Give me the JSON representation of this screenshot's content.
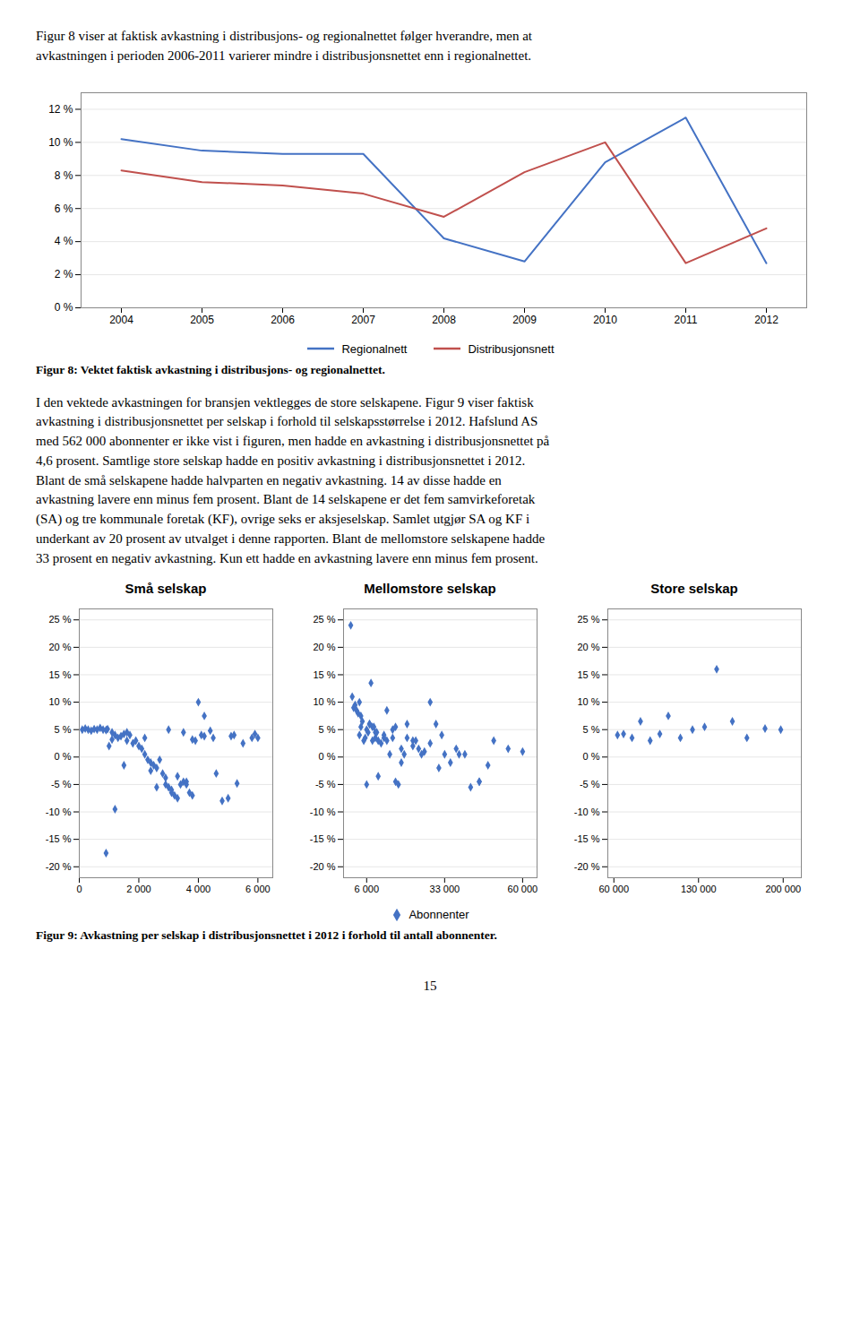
{
  "chart_data": [
    {
      "type": "line",
      "x": [
        2004,
        2005,
        2006,
        2007,
        2008,
        2009,
        2010,
        2011,
        2012
      ],
      "series": [
        {
          "name": "Regionalnett",
          "color": "#4472C4",
          "values": [
            10.2,
            9.5,
            9.3,
            9.3,
            4.2,
            2.8,
            8.8,
            11.5,
            2.7
          ]
        },
        {
          "name": "Distribusjonsnett",
          "color": "#C0504D",
          "values": [
            8.3,
            7.6,
            7.4,
            6.9,
            5.5,
            8.2,
            10.0,
            2.7,
            4.8
          ]
        }
      ],
      "xlim": [
        2003.5,
        2012.5
      ],
      "xticks": [
        2004,
        2005,
        2006,
        2007,
        2008,
        2009,
        2010,
        2011,
        2012
      ],
      "ylim": [
        0,
        13
      ],
      "yticks": [
        {
          "value": 0,
          "label": "0 %"
        },
        {
          "value": 2,
          "label": "2 %"
        },
        {
          "value": 4,
          "label": "4 %"
        },
        {
          "value": 6,
          "label": "6 %"
        },
        {
          "value": 8,
          "label": "8 %"
        },
        {
          "value": 10,
          "label": "10 %"
        },
        {
          "value": 12,
          "label": "12 %"
        }
      ],
      "grid": true,
      "legend": "bottom"
    },
    {
      "type": "scatter",
      "title": "Små selskap",
      "x": [
        100,
        200,
        300,
        400,
        500,
        600,
        700,
        800,
        900,
        950,
        1000,
        1100,
        1200,
        1300,
        1400,
        1500,
        1600,
        1700,
        1800,
        1900,
        2000,
        2100,
        2200,
        2300,
        2400,
        2500,
        2600,
        2700,
        2800,
        2900,
        3000,
        3100,
        3200,
        3300,
        3400,
        3500,
        3600,
        3700,
        3800,
        3900,
        4000,
        4200,
        4500,
        4800,
        5000,
        5500,
        5800,
        6000,
        900,
        1500,
        2200,
        3000,
        3500,
        4200,
        1200,
        2600,
        3100,
        3800,
        4600,
        5200,
        5900,
        1100,
        2400,
        3300,
        4100,
        5300,
        1600,
        2900,
        3600,
        4400,
        5100
      ],
      "values": [
        5.0,
        5.2,
        5.0,
        4.8,
        5.1,
        5.0,
        5.3,
        5.0,
        4.9,
        5.1,
        2.0,
        4.5,
        4.0,
        3.5,
        3.8,
        4.2,
        3.0,
        4.0,
        2.5,
        3.0,
        2.0,
        1.5,
        0.5,
        -0.5,
        -1.0,
        -1.5,
        -2.0,
        -0.5,
        -3.0,
        -5.0,
        -5.5,
        -6.0,
        -7.0,
        -7.5,
        -5.0,
        -4.5,
        -5.0,
        -6.5,
        -7.0,
        3.0,
        10.0,
        7.5,
        3.5,
        -8.0,
        -7.5,
        2.5,
        3.5,
        3.5,
        -17.5,
        -1.5,
        3.5,
        5.0,
        4.5,
        3.8,
        -9.5,
        -5.5,
        -6.5,
        3.2,
        -3.0,
        4.0,
        4.2,
        3.2,
        -2.5,
        -3.5,
        4.0,
        -4.8,
        4.5,
        -3.8,
        -4.5,
        4.8,
        3.8
      ],
      "color": "#4472C4",
      "marker": "diamond",
      "xlim": [
        0,
        6500
      ],
      "xticks": [
        0,
        {
          "value": 2000,
          "label": "2 000"
        },
        {
          "value": 4000,
          "label": "4 000"
        },
        {
          "value": 6000,
          "label": "6 000"
        }
      ],
      "ylim": [
        -22,
        27
      ],
      "yticks": [
        {
          "value": -20,
          "label": "-20 %"
        },
        {
          "value": -15,
          "label": "-15 %"
        },
        {
          "value": -10,
          "label": "-10 %"
        },
        {
          "value": -5,
          "label": "-5 %"
        },
        {
          "value": 0,
          "label": "0 %"
        },
        {
          "value": 5,
          "label": "5 %"
        },
        {
          "value": 10,
          "label": "10 %"
        },
        {
          "value": 15,
          "label": "15 %"
        },
        {
          "value": 20,
          "label": "20 %"
        },
        {
          "value": 25,
          "label": "25 %"
        }
      ],
      "grid": true
    },
    {
      "type": "scatter",
      "title": "Mellomstore selskap",
      "x": [
        500,
        1000,
        1500,
        2000,
        2500,
        3000,
        3500,
        4000,
        4500,
        5000,
        5500,
        6000,
        6500,
        7000,
        7500,
        8000,
        8500,
        9000,
        9500,
        10000,
        11000,
        12000,
        13000,
        14000,
        15000,
        16000,
        17000,
        18000,
        19000,
        20000,
        22000,
        24000,
        26000,
        28000,
        30000,
        32000,
        35000,
        38000,
        40000,
        45000,
        50000,
        55000,
        60000,
        3500,
        7000,
        12000,
        18000,
        25000,
        33000,
        45000,
        8000,
        15000,
        22000,
        6000,
        10000,
        4000,
        9000,
        16000,
        23000,
        31000,
        42000,
        13000,
        20000,
        28000,
        37000,
        48000
      ],
      "series": [
        {
          "name": "Abonnenter",
          "color": "#4472C4",
          "marker": "diamond",
          "values": [
            24.0,
            11.0,
            9.0,
            9.5,
            8.5,
            8.0,
            4.0,
            5.5,
            6.5,
            3.0,
            3.5,
            5.0,
            4.5,
            6.0,
            13.5,
            5.5,
            5.5,
            3.5,
            4.5,
            3.0,
            2.5,
            3.5,
            3.0,
            0.5,
            3.5,
            -4.5,
            -5.0,
            1.5,
            0.5,
            6.0,
            3.0,
            1.5,
            1.0,
            10.0,
            6.0,
            4.0,
            -1.0,
            0.5,
            0.5,
            -4.5,
            3.0,
            1.5,
            1.0,
            10.0,
            6.0,
            4.0,
            -1.0,
            0.5,
            0.5,
            -4.5,
            3.0,
            5.0,
            2.0,
            -5.0,
            -3.5,
            7.5,
            4.5,
            5.5,
            3.0,
            -2.0,
            -5.5,
            8.5,
            3.5,
            2.5,
            1.5,
            -1.5
          ]
        }
      ],
      "xlim": [
        -2000,
        65000
      ],
      "xticks": [
        {
          "value": 6000,
          "label": "6 000"
        },
        {
          "value": 33000,
          "label": "33 000"
        },
        {
          "value": 60000,
          "label": "60 000"
        }
      ],
      "ylim": [
        -22,
        27
      ],
      "yticks": [
        {
          "value": -20,
          "label": "-20 %"
        },
        {
          "value": -15,
          "label": "-15 %"
        },
        {
          "value": -10,
          "label": "-10 %"
        },
        {
          "value": -5,
          "label": "-5 %"
        },
        {
          "value": 0,
          "label": "0 %"
        },
        {
          "value": 5,
          "label": "5 %"
        },
        {
          "value": 10,
          "label": "10 %"
        },
        {
          "value": 15,
          "label": "15 %"
        },
        {
          "value": 20,
          "label": "20 %"
        },
        {
          "value": 25,
          "label": "25 %"
        }
      ],
      "grid": true,
      "legend": "bottom"
    },
    {
      "type": "scatter",
      "title": "Store selskap",
      "x": [
        63000,
        68000,
        75000,
        82000,
        90000,
        98000,
        105000,
        115000,
        125000,
        135000,
        145000,
        158000,
        170000,
        185000,
        198000
      ],
      "values": [
        4.0,
        4.2,
        3.5,
        6.5,
        3.0,
        4.2,
        7.5,
        3.5,
        5.0,
        5.5,
        16.0,
        6.5,
        3.5,
        5.2,
        5.0
      ],
      "color": "#4472C4",
      "marker": "diamond",
      "xlim": [
        55000,
        215000
      ],
      "xticks": [
        {
          "value": 60000,
          "label": "60 000"
        },
        {
          "value": 130000,
          "label": "130 000"
        },
        {
          "value": 200000,
          "label": "200 000"
        }
      ],
      "ylim": [
        -22,
        27
      ],
      "yticks": [
        {
          "value": -20,
          "label": "-20 %"
        },
        {
          "value": -15,
          "label": "-15 %"
        },
        {
          "value": -10,
          "label": "-10 %"
        },
        {
          "value": -5,
          "label": "-5 %"
        },
        {
          "value": 0,
          "label": "0 %"
        },
        {
          "value": 5,
          "label": "5 %"
        },
        {
          "value": 10,
          "label": "10 %"
        },
        {
          "value": 15,
          "label": "15 %"
        },
        {
          "value": 20,
          "label": "20 %"
        },
        {
          "value": 25,
          "label": "25 %"
        }
      ],
      "grid": true
    }
  ],
  "annotations": [
    "Figur 8 viser at faktisk avkastning i distribusjons- og regionalnettet følger hverandre, men at\navkastningen i perioden 2006-2011 varierer mindre i distribusjonsnettet enn i regionalnettet.",
    "Figur 8: Vektet faktisk avkastning i distribusjons- og regionalnettet.",
    "I den vektede avkastningen for bransjen vektlegges de store selskapene. Figur 9 viser faktisk\navkastning i distribusjonsnettet per selskap i forhold til selskapsstørrelse i 2012. Hafslund AS\nmed 562 000 abonnenter er ikke vist i figuren, men hadde en avkastning i distribusjonsnettet på\n4,6 prosent. Samtlige store selskap hadde en positiv avkastning i distribusjonsnettet i 2012.\nBlant de små selskapene hadde halvparten en negativ avkastning. 14 av disse hadde en\navkastning lavere enn minus fem prosent. Blant de 14 selskapene er det fem samvirkeforetak\n(SA) og tre kommunale foretak (KF), ovrige seks er aksjeselskap. Samlet utgjør SA og KF i\nunderkant av 20 prosent av utvalget i denne rapporten. Blant de mellomstore selskapene hadde\n33 prosent en negativ avkastning. Kun ett hadde en avkastning lavere enn minus fem prosent.",
    "Figur 9: Avkastning per selskap i distribusjonsnettet i 2012 i forhold til antall abonnenter.",
    "15"
  ]
}
